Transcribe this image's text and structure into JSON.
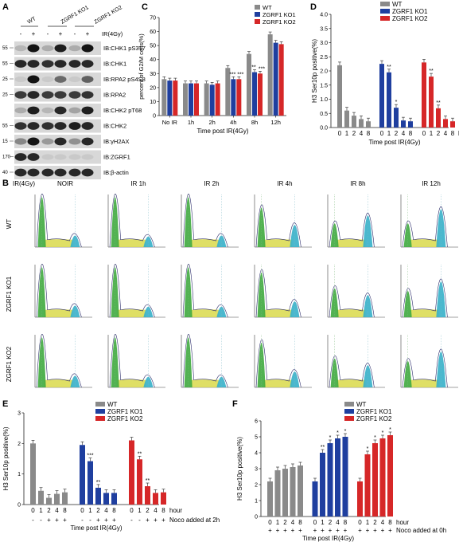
{
  "panelA": {
    "letter": "A",
    "groups": [
      "WT",
      "ZGRF1 KO1",
      "ZGRF1 KO2"
    ],
    "treat_label": "IR(4Gy)",
    "treat_marks": [
      "-",
      "+",
      "-",
      "+",
      "-",
      "+"
    ],
    "blots": [
      {
        "label": "IB:CHK1 pS317",
        "mw": "55"
      },
      {
        "label": "IB:CHK1",
        "mw": "55"
      },
      {
        "label": "IB:RPA2 pS4S8",
        "mw": "25"
      },
      {
        "label": "IB:RPA2",
        "mw": "25"
      },
      {
        "label": "IB:CHK2 pT68",
        "mw": ""
      },
      {
        "label": "IB:CHK2",
        "mw": "55"
      },
      {
        "label": "IB:γH2AX",
        "mw": "15"
      },
      {
        "label": "IB:ZGRF1",
        "mw": "170"
      },
      {
        "label": "IB:β-actin",
        "mw": "40"
      }
    ]
  },
  "panelB": {
    "letter": "B",
    "treat_label": "IR(4Gy)",
    "columns": [
      "NOIR",
      "IR 1h",
      "IR 2h",
      "IR 4h",
      "IR 8h",
      "IR 12h"
    ],
    "rows": [
      "WT",
      "ZGRF1 KO1",
      "ZGRF1 KO2"
    ]
  },
  "chart_data": [
    {
      "panel": "C",
      "type": "bar",
      "categories": [
        "No IR",
        "1h",
        "2h",
        "4h",
        "8h",
        "12h"
      ],
      "series": [
        {
          "name": "WT",
          "values": [
            26,
            23,
            23,
            34,
            44,
            58
          ]
        },
        {
          "name": "ZGRF1 KO1",
          "values": [
            25,
            23,
            22,
            26,
            31,
            52
          ]
        },
        {
          "name": "ZGRF1 KO2",
          "values": [
            25,
            23,
            23,
            26,
            30,
            51
          ]
        }
      ],
      "stars": [
        [
          "",
          "",
          "",
          "",
          "",
          ""
        ],
        [
          "",
          "",
          "",
          "***",
          "**",
          ""
        ],
        [
          "",
          "",
          "",
          "***",
          "***",
          ""
        ]
      ],
      "xlabel": "Time post IR(4Gy)",
      "ylabel": "percent of G2/M cells(%)",
      "ylim": [
        0,
        70
      ],
      "yticks": [
        "0",
        "10",
        "20",
        "30",
        "40",
        "50",
        "60",
        "70"
      ],
      "colors": [
        "#8a8a8a",
        "#1f3f9f",
        "#d62728"
      ]
    },
    {
      "panel": "D",
      "type": "bar",
      "groups": [
        "WT",
        "ZGRF1 KO1",
        "ZGRF1 KO2"
      ],
      "categories": [
        "0",
        "1",
        "2",
        "4",
        "8"
      ],
      "values": [
        [
          2.2,
          0.6,
          0.42,
          0.3,
          0.22
        ],
        [
          2.25,
          1.95,
          0.7,
          0.25,
          0.22
        ],
        [
          2.3,
          1.8,
          0.68,
          0.3,
          0.22
        ]
      ],
      "stars": [
        [
          "",
          "",
          "",
          "",
          ""
        ],
        [
          "",
          "**",
          "*",
          "",
          ""
        ],
        [
          "",
          "**",
          "**",
          "",
          ""
        ]
      ],
      "unit": "hour",
      "xlabel": "Time post IR(4Gy)",
      "ylabel": "H3 Ser10p positive(%)",
      "ylim": [
        0,
        4
      ],
      "yticks": [
        "0.0",
        "0.5",
        "1.0",
        "1.5",
        "2.0",
        "2.5",
        "3.0",
        "3.5",
        "4.0"
      ],
      "legend": [
        "WT",
        "ZGRF1 KO1",
        "ZGRF1 KO2"
      ],
      "colors": [
        "#8a8a8a",
        "#1f3f9f",
        "#d62728"
      ]
    },
    {
      "panel": "E",
      "type": "bar",
      "groups": [
        "WT",
        "ZGRF1 KO1",
        "ZGRF1 KO2"
      ],
      "categories": [
        "0",
        "1",
        "2",
        "4",
        "8"
      ],
      "values": [
        [
          2.0,
          0.45,
          0.22,
          0.35,
          0.4
        ],
        [
          1.95,
          1.42,
          0.55,
          0.38,
          0.38
        ],
        [
          2.1,
          1.48,
          0.6,
          0.38,
          0.4
        ]
      ],
      "stars": [
        [
          "",
          "",
          "",
          "",
          ""
        ],
        [
          "",
          "***",
          "**",
          "",
          ""
        ],
        [
          "",
          "**",
          "**",
          "",
          ""
        ]
      ],
      "noco": [
        "-",
        "-",
        "+",
        "+",
        "+"
      ],
      "noco_label": "Noco added at 2h",
      "unit": "hour",
      "xlabel": "Time post IR(4Gy)",
      "ylabel": "H3 Ser10p positive(%)",
      "ylim": [
        0,
        3
      ],
      "yticks": [
        "0",
        "1",
        "2",
        "3"
      ],
      "legend": [
        "WT",
        "ZGRF1 KO1",
        "ZGRF1 KO2"
      ],
      "colors": [
        "#8a8a8a",
        "#1f3f9f",
        "#d62728"
      ]
    },
    {
      "panel": "F",
      "type": "bar",
      "groups": [
        "WT",
        "ZGRF1 KO1",
        "ZGRF1 KO2"
      ],
      "categories": [
        "0",
        "1",
        "2",
        "4",
        "8"
      ],
      "values": [
        [
          2.2,
          2.9,
          3.0,
          3.1,
          3.2
        ],
        [
          2.2,
          4.0,
          4.6,
          4.9,
          5.0
        ],
        [
          2.2,
          3.9,
          4.6,
          4.9,
          5.1
        ]
      ],
      "stars": [
        [
          "",
          "",
          "",
          "",
          ""
        ],
        [
          "",
          "**",
          "*",
          "*",
          "*"
        ],
        [
          "",
          "*",
          "*",
          "*",
          "*"
        ]
      ],
      "noco": [
        "+",
        "+",
        "+",
        "+",
        "+"
      ],
      "noco_label": "Noco added at 0h",
      "unit": "hour",
      "xlabel": "Time post IR(4Gy)",
      "ylabel": "H3 Ser10p positive(%)",
      "ylim": [
        0,
        6
      ],
      "yticks": [
        "0",
        "1",
        "2",
        "3",
        "4",
        "5",
        "6"
      ],
      "legend": [
        "WT",
        "ZGRF1 KO1",
        "ZGRF1 KO2"
      ],
      "colors": [
        "#8a8a8a",
        "#1f3f9f",
        "#d62728"
      ]
    }
  ],
  "letters": {
    "C": "C",
    "D": "D",
    "E": "E",
    "F": "F"
  }
}
